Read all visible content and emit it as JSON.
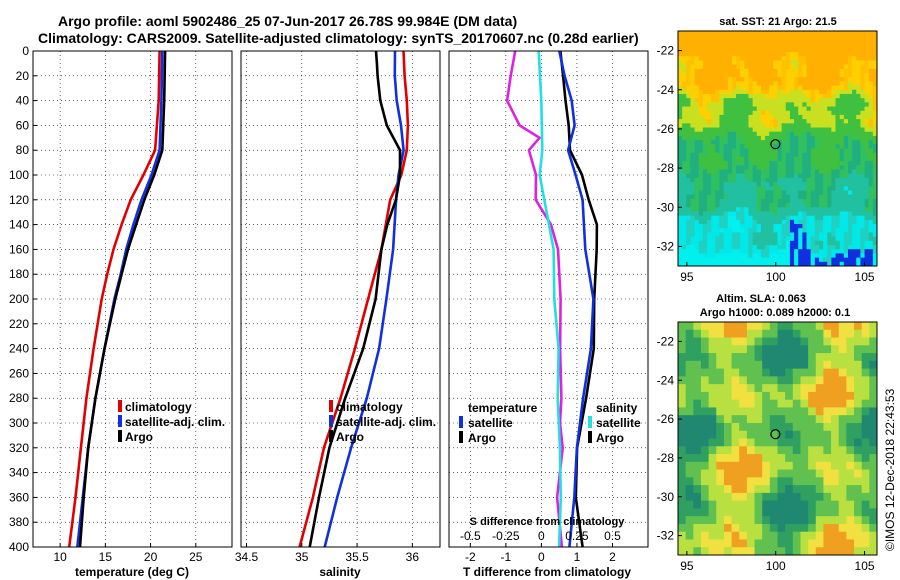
{
  "header": {
    "line1": "Argo profile: aoml 5902486_25 07-Jun-2017 26.78S 99.984E (DM data)",
    "line2": "Climatology: CARS2009. Satellite-adjusted climatology: synTS_20170607.nc (0.28d earlier)"
  },
  "colors": {
    "climatology": "#e00000",
    "satellite": "#1030e0",
    "argo": "#000000",
    "temperature_diff": "#e020e0",
    "salinity_diff": "#20e0e0"
  },
  "chart_data": [
    {
      "type": "line",
      "id": "temperature",
      "xlabel": "temperature (deg C)",
      "ylabel": "",
      "xlim": [
        7,
        29
      ],
      "xticks": [
        "10",
        "15",
        "20",
        "25"
      ],
      "xtick_values": [
        10,
        15,
        20,
        25
      ],
      "ylim": [
        400,
        0
      ],
      "yticks": [
        "0",
        "20",
        "40",
        "60",
        "80",
        "100",
        "120",
        "140",
        "160",
        "180",
        "200",
        "220",
        "240",
        "260",
        "280",
        "300",
        "320",
        "340",
        "360",
        "380",
        "400"
      ],
      "ytick_values": [
        0,
        20,
        40,
        60,
        80,
        100,
        120,
        140,
        160,
        180,
        200,
        220,
        240,
        260,
        280,
        300,
        320,
        340,
        360,
        380,
        400
      ],
      "legend": [
        "climatology",
        "satellite-adj. clim.",
        "Argo"
      ],
      "series": [
        {
          "name": "climatology",
          "color": "#e00000",
          "depth": [
            0,
            40,
            80,
            100,
            120,
            140,
            160,
            180,
            200,
            240,
            280,
            320,
            360,
            400
          ],
          "values": [
            21.0,
            20.9,
            20.5,
            19.2,
            17.8,
            16.8,
            15.9,
            15.2,
            14.6,
            13.7,
            12.9,
            12.3,
            11.7,
            11.0
          ]
        },
        {
          "name": "satellite-adj. clim.",
          "color": "#1030e0",
          "depth": [
            0,
            40,
            80,
            100,
            120,
            140,
            160,
            180,
            200,
            240,
            280,
            320,
            360,
            400
          ],
          "values": [
            21.3,
            21.2,
            21.0,
            20.1,
            19.0,
            18.1,
            17.3,
            16.7,
            16.0,
            14.9,
            13.9,
            13.1,
            12.5,
            11.9
          ]
        },
        {
          "name": "Argo",
          "color": "#000000",
          "depth": [
            0,
            40,
            80,
            100,
            120,
            140,
            160,
            180,
            200,
            240,
            280,
            320,
            360,
            400
          ],
          "values": [
            21.6,
            21.5,
            21.3,
            20.4,
            19.3,
            18.4,
            17.5,
            16.8,
            16.1,
            14.9,
            13.9,
            13.1,
            12.6,
            12.2
          ]
        }
      ]
    },
    {
      "type": "line",
      "id": "salinity",
      "xlabel": "salinity",
      "ylabel": "",
      "xlim": [
        34.45,
        36.25
      ],
      "xticks": [
        "34.5",
        "35",
        "35.5",
        "36"
      ],
      "xtick_values": [
        34.5,
        35,
        35.5,
        36
      ],
      "ylim": [
        400,
        0
      ],
      "legend": [
        "climatology",
        "satellite-adj. clim.",
        "Argo"
      ],
      "series": [
        {
          "name": "climatology",
          "color": "#e00000",
          "depth": [
            0,
            20,
            40,
            60,
            80,
            100,
            120,
            160,
            200,
            240,
            280,
            320,
            360,
            400
          ],
          "values": [
            35.92,
            35.93,
            35.95,
            35.96,
            35.95,
            35.9,
            35.8,
            35.72,
            35.6,
            35.48,
            35.35,
            35.2,
            35.1,
            34.98
          ]
        },
        {
          "name": "satellite-adj. clim.",
          "color": "#1030e0",
          "depth": [
            0,
            20,
            40,
            60,
            80,
            100,
            120,
            160,
            200,
            240,
            280,
            320,
            360,
            400
          ],
          "values": [
            35.85,
            35.84,
            35.86,
            35.9,
            35.92,
            35.88,
            35.86,
            35.82,
            35.77,
            35.7,
            35.58,
            35.45,
            35.32,
            35.2
          ]
        },
        {
          "name": "Argo",
          "color": "#000000",
          "depth": [
            0,
            10,
            20,
            40,
            60,
            80,
            100,
            120,
            140,
            160,
            200,
            240,
            280,
            320,
            360,
            400
          ],
          "values": [
            35.67,
            35.68,
            35.69,
            35.7,
            35.78,
            35.88,
            35.9,
            35.85,
            35.78,
            35.72,
            35.66,
            35.55,
            35.38,
            35.25,
            35.15,
            35.08
          ]
        }
      ]
    },
    {
      "type": "line",
      "id": "differences",
      "xlabel": "T difference from climatology",
      "xlabel_top": "S difference from climatology",
      "xlim": [
        -2.6,
        3.0
      ],
      "xticks": [
        "-2",
        "-1",
        "0",
        "1",
        "2"
      ],
      "xtick_values": [
        -2,
        -1,
        0,
        1,
        2
      ],
      "top_ticks": [
        "-0.5",
        "-0.25",
        "0",
        "0.25",
        "0.5"
      ],
      "top_tick_values": [
        -0.5,
        -0.25,
        0,
        0.25,
        0.5
      ],
      "ylim": [
        400,
        0
      ],
      "legend_left": {
        "heading": "temperature",
        "items": [
          "satellite",
          "Argo"
        ]
      },
      "legend_right": {
        "heading": "salinity",
        "items": [
          "satellite",
          "Argo"
        ]
      },
      "series": [
        {
          "name": "temperature satellite",
          "color": "#e020e0",
          "depth": [
            0,
            20,
            40,
            60,
            70,
            80,
            100,
            120,
            140,
            160,
            200,
            240,
            280,
            300,
            320,
            360,
            400
          ],
          "values": [
            -0.8,
            -0.9,
            -0.9,
            -0.6,
            -0.1,
            -0.3,
            -0.2,
            -0.1,
            0.2,
            0.5,
            0.5,
            0.6,
            0.6,
            0.5,
            0.6,
            0.5,
            0.6
          ]
        },
        {
          "name": "temperature Argo",
          "color": "#000000",
          "depth": [
            0,
            20,
            40,
            60,
            80,
            100,
            120,
            140,
            160,
            200,
            240,
            280,
            320,
            360,
            400
          ],
          "values": [
            0.6,
            0.6,
            0.7,
            0.8,
            0.8,
            1.2,
            1.4,
            1.5,
            1.6,
            1.5,
            1.4,
            1.3,
            1.0,
            0.9,
            1.1
          ]
        },
        {
          "name": "salinity satellite",
          "color": "#20e0e0",
          "depth": [
            0,
            40,
            80,
            100,
            120,
            160,
            200,
            240,
            280,
            320,
            360,
            400
          ],
          "values": [
            -0.02,
            0,
            0.01,
            -0.02,
            0.03,
            0.08,
            0.1,
            0.12,
            0.12,
            0.13,
            0.13,
            0.12
          ]
        },
        {
          "name": "salinity Argo",
          "color": "#1030e0",
          "depth": [
            0,
            20,
            40,
            60,
            80,
            100,
            120,
            160,
            200,
            240,
            280,
            320,
            360,
            400
          ],
          "values": [
            0.13,
            0.17,
            0.2,
            0.23,
            0.2,
            0.25,
            0.28,
            0.3,
            0.38,
            0.36,
            0.3,
            0.24,
            0.24,
            0.2
          ]
        }
      ]
    },
    {
      "type": "heatmap",
      "id": "sst_map",
      "title": "sat. SST: 21 Argo: 21.5",
      "xlim": [
        94.5,
        105.7
      ],
      "ylim": [
        -33,
        -21
      ],
      "xticks": [
        "95",
        "100",
        "105"
      ],
      "xtick_values": [
        95,
        100,
        105
      ],
      "yticks": [
        "-22",
        "-24",
        "-26",
        "-28",
        "-30",
        "-32"
      ],
      "ytick_values": [
        -22,
        -24,
        -26,
        -28,
        -30,
        -32
      ],
      "marker": {
        "lon": 99.984,
        "lat": -26.78
      }
    },
    {
      "type": "heatmap",
      "id": "sla_map",
      "title": "Altim. SLA: 0.063",
      "subtitle": "Argo h1000: 0.089 h2000: 0.1",
      "xlim": [
        94.5,
        105.7
      ],
      "ylim": [
        -33,
        -21
      ],
      "xticks": [
        "95",
        "100",
        "105"
      ],
      "xtick_values": [
        95,
        100,
        105
      ],
      "yticks": [
        "-22",
        "-24",
        "-26",
        "-28",
        "-30",
        "-32"
      ],
      "ytick_values": [
        -22,
        -24,
        -26,
        -28,
        -30,
        -32
      ],
      "marker": {
        "lon": 99.984,
        "lat": -26.78
      }
    }
  ],
  "legend_labels": {
    "climatology": "climatology",
    "satellite_adj": "satellite-adj. clim.",
    "argo": "Argo",
    "temperature": "temperature",
    "salinity": "salinity",
    "satellite": "satellite"
  },
  "credit": "©IMOS 12-Dec-2018 22:43:53"
}
